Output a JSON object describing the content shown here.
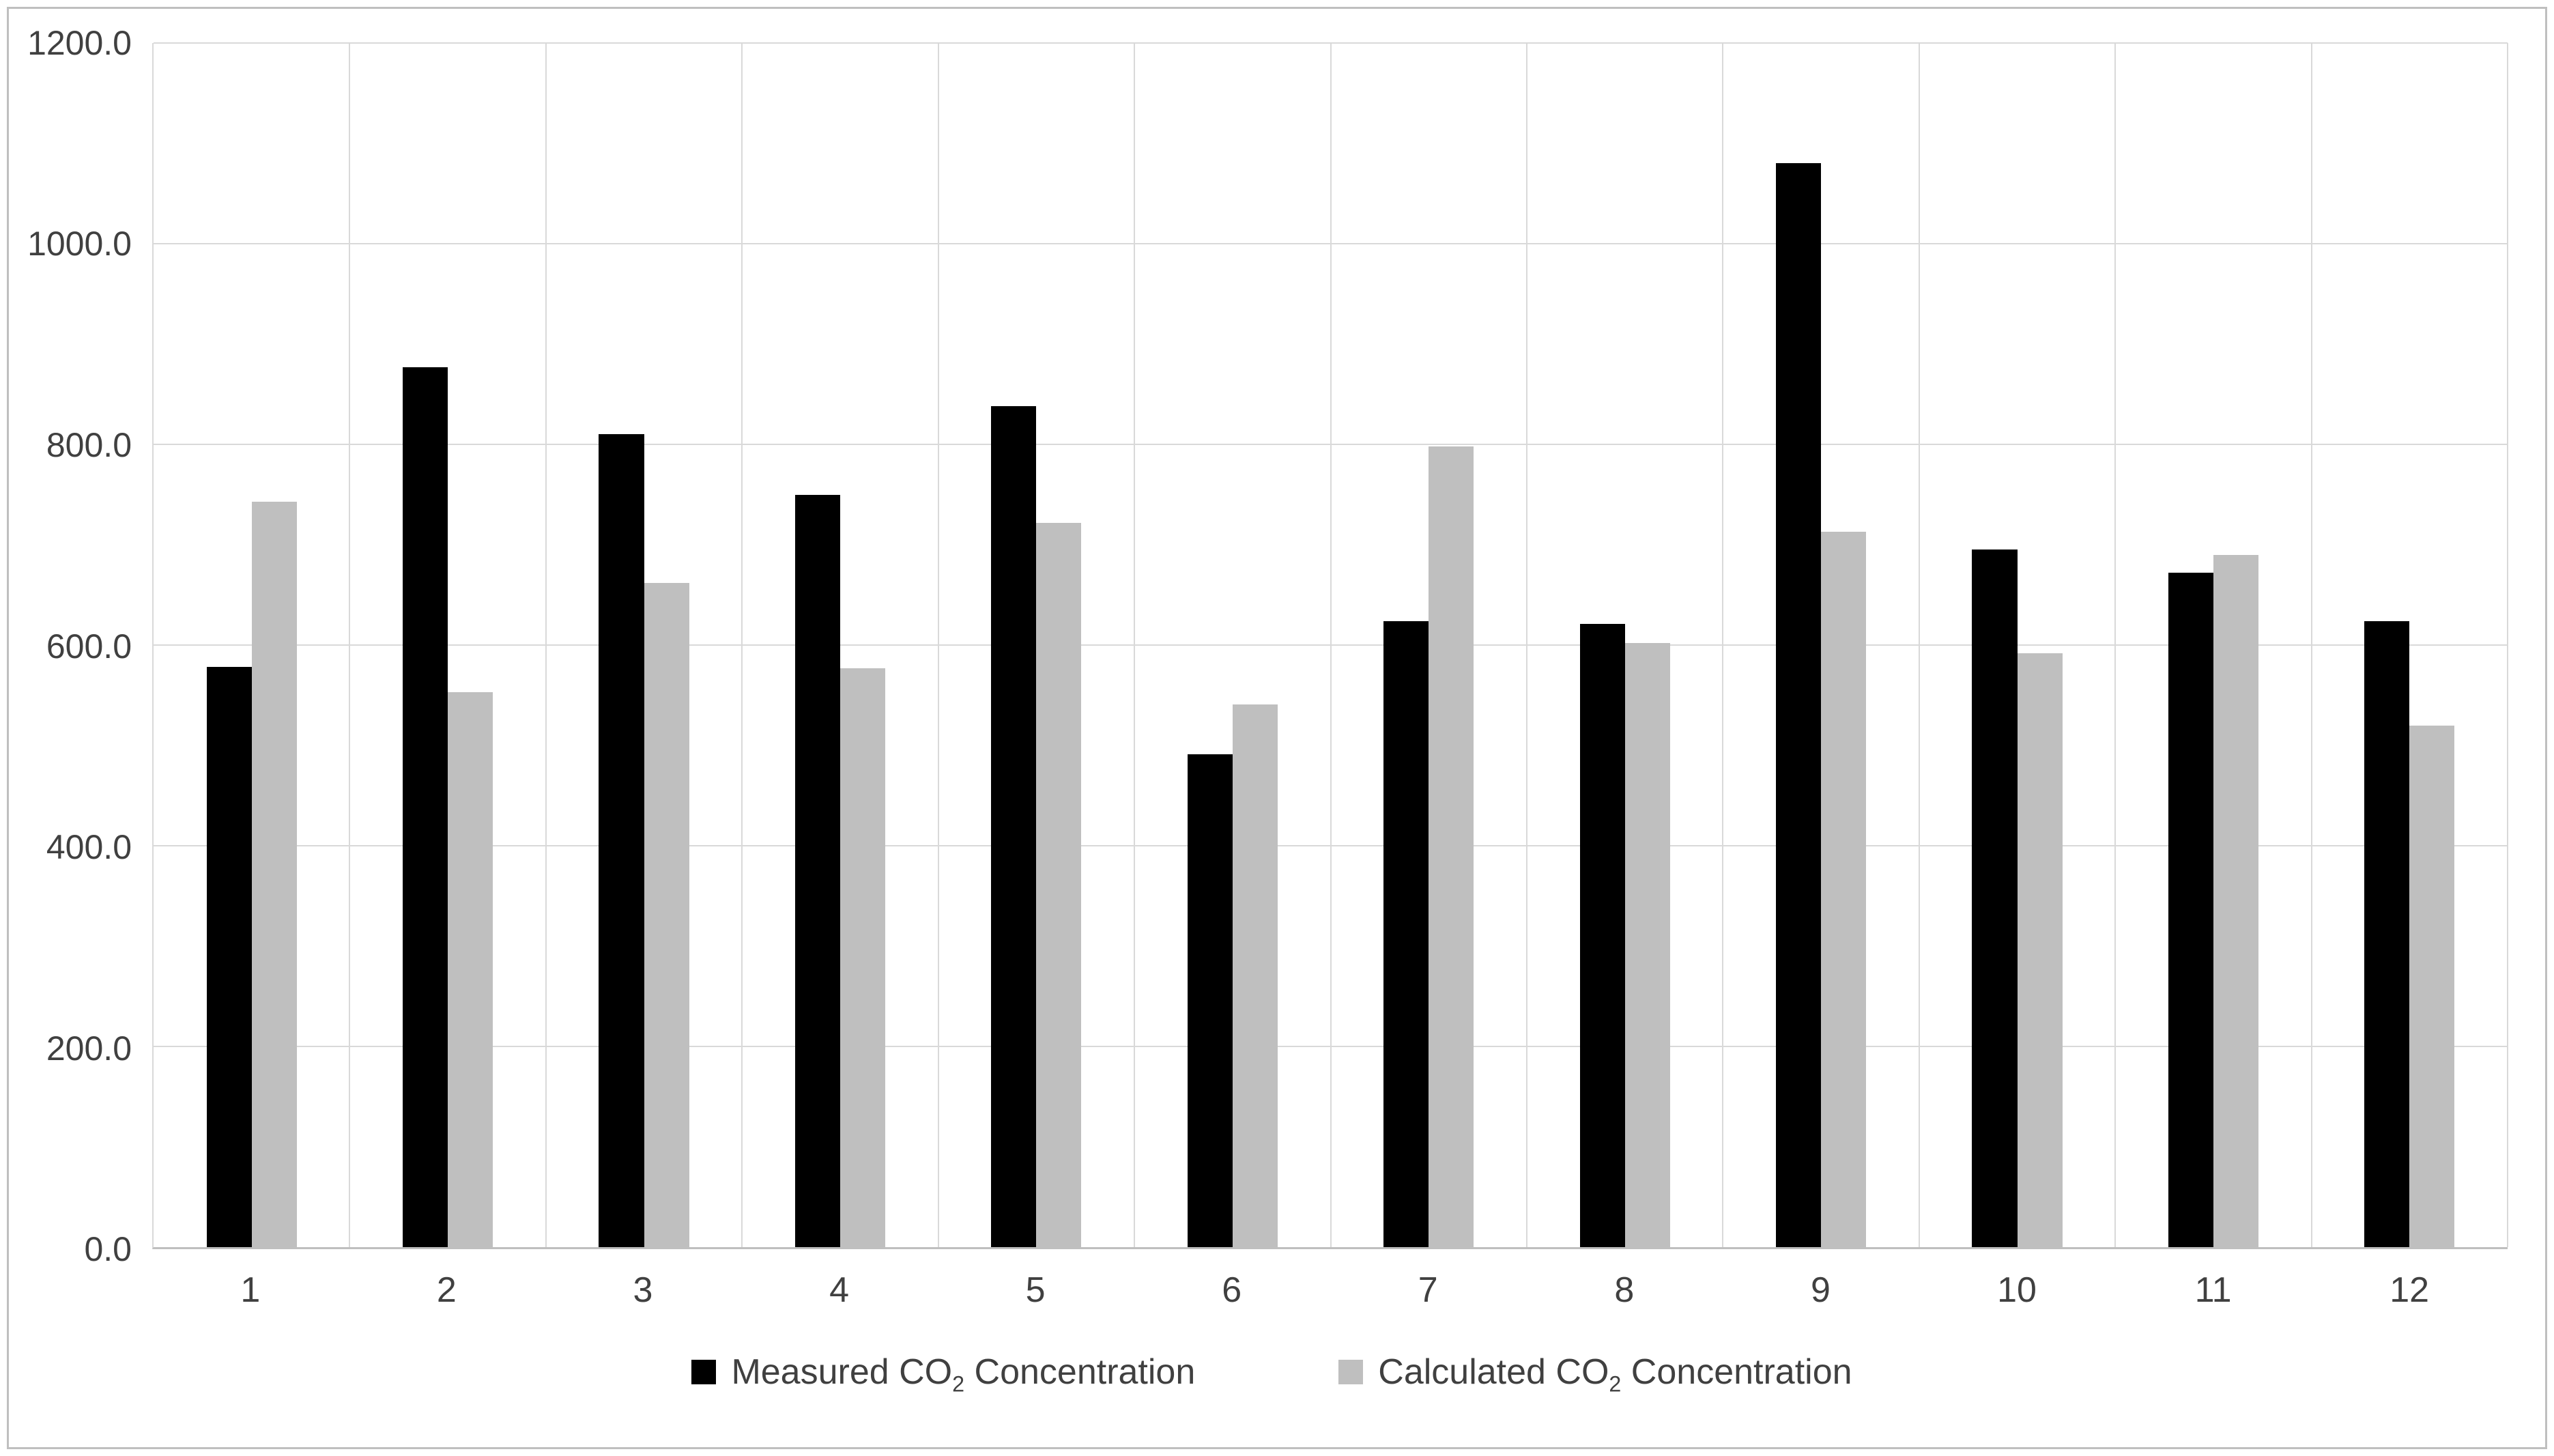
{
  "chart_data": {
    "type": "bar",
    "categories": [
      "1",
      "2",
      "3",
      "4",
      "5",
      "6",
      "7",
      "8",
      "9",
      "10",
      "11",
      "12"
    ],
    "series": [
      {
        "name": "Measured CO2 Concentration",
        "color": "#000000",
        "values": [
          578,
          877,
          810,
          750,
          838,
          491,
          624,
          621,
          1080,
          695,
          672,
          624
        ]
      },
      {
        "name": "Calculated CO2 Concentration",
        "color": "#bfbfbf",
        "values": [
          743,
          553,
          662,
          577,
          722,
          541,
          798,
          602,
          713,
          592,
          690,
          520
        ]
      }
    ],
    "title": "",
    "xlabel": "",
    "ylabel": "",
    "ylim": [
      0,
      1200
    ],
    "ytick_interval": 200,
    "ytick_labels": [
      "0.0",
      "200.0",
      "400.0",
      "600.0",
      "800.0",
      "1000.0",
      "1200.0"
    ],
    "grid": true,
    "legend_position": "bottom"
  },
  "legend": {
    "items": [
      {
        "pre": "Measured CO",
        "sub": "2",
        "post": " Concentration"
      },
      {
        "pre": "Calculated  CO",
        "sub": "2",
        "post": " Concentration"
      }
    ]
  },
  "colors": {
    "gridline": "#d9d9d9",
    "axis_line": "#bfbfbf",
    "frame_border": "#bfbfbf",
    "text": "#404040",
    "measured_bar": "#000000",
    "calculated_bar": "#bfbfbf"
  }
}
